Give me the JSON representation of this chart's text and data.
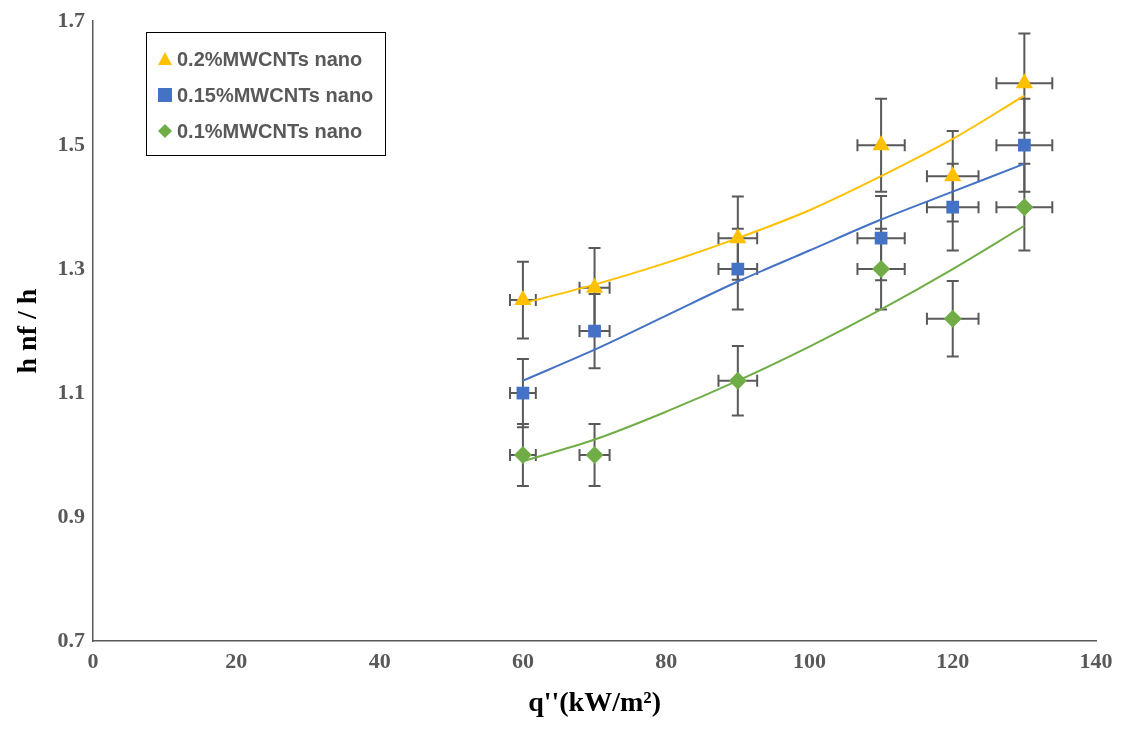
{
  "chart_data": {
    "type": "scatter",
    "xlabel": "q''(kW/m²)",
    "ylabel": "h nf / h",
    "xlim": [
      0,
      140
    ],
    "xticks": [
      0,
      20,
      40,
      60,
      80,
      100,
      120,
      140
    ],
    "ylim": [
      0.7,
      1.7
    ],
    "yticks": [
      0.7,
      0.9,
      1.1,
      1.3,
      1.5,
      1.7
    ],
    "legend": "top left",
    "series": [
      {
        "name": "0.2%MWCNTs nano",
        "marker": "triangle",
        "color": "#ffc000",
        "x": [
          60,
          70,
          90,
          110,
          120,
          130
        ],
        "values": [
          1.25,
          1.27,
          1.35,
          1.5,
          1.45,
          1.6
        ],
        "errors": [
          0.062,
          0.064,
          0.067,
          0.075,
          0.073,
          0.08
        ],
        "xerrors": [
          1.8,
          2.1,
          2.7,
          3.3,
          3.6,
          3.9
        ]
      },
      {
        "name": "0.15%MWCNTs nano",
        "marker": "square",
        "color": "#4472c4",
        "x": [
          60,
          70,
          90,
          110,
          120,
          130
        ],
        "values": [
          1.1,
          1.2,
          1.3,
          1.35,
          1.4,
          1.5
        ],
        "errors": [
          0.055,
          0.06,
          0.065,
          0.068,
          0.07,
          0.075
        ],
        "xerrors": [
          1.8,
          2.1,
          2.7,
          3.3,
          3.6,
          3.9
        ]
      },
      {
        "name": "0.1%MWCNTs nano",
        "marker": "diamond",
        "color": "#70ad47",
        "x": [
          60,
          70,
          90,
          110,
          120,
          130
        ],
        "values": [
          1.0,
          1.0,
          1.12,
          1.3,
          1.22,
          1.4
        ],
        "errors": [
          0.05,
          0.05,
          0.056,
          0.065,
          0.061,
          0.07
        ],
        "xerrors": [
          1.8,
          2.1,
          2.7,
          3.3,
          3.6,
          3.9
        ]
      },
      {
        "type": "line",
        "marker": "none",
        "color": "#ffc000",
        "x": [
          60,
          70,
          80,
          90,
          100,
          110,
          120,
          130
        ],
        "values": [
          1.245,
          1.275,
          1.31,
          1.35,
          1.395,
          1.45,
          1.51,
          1.58
        ]
      },
      {
        "type": "line",
        "marker": "none",
        "color": "#4472c4",
        "x": [
          60,
          70,
          80,
          90,
          100,
          110,
          120,
          130
        ],
        "values": [
          1.12,
          1.17,
          1.225,
          1.28,
          1.33,
          1.38,
          1.425,
          1.47
        ]
      },
      {
        "type": "line",
        "marker": "none",
        "color": "#70ad47",
        "x": [
          60,
          70,
          80,
          90,
          100,
          110,
          120,
          130
        ],
        "values": [
          0.99,
          1.025,
          1.07,
          1.12,
          1.175,
          1.235,
          1.3,
          1.37
        ]
      }
    ]
  }
}
